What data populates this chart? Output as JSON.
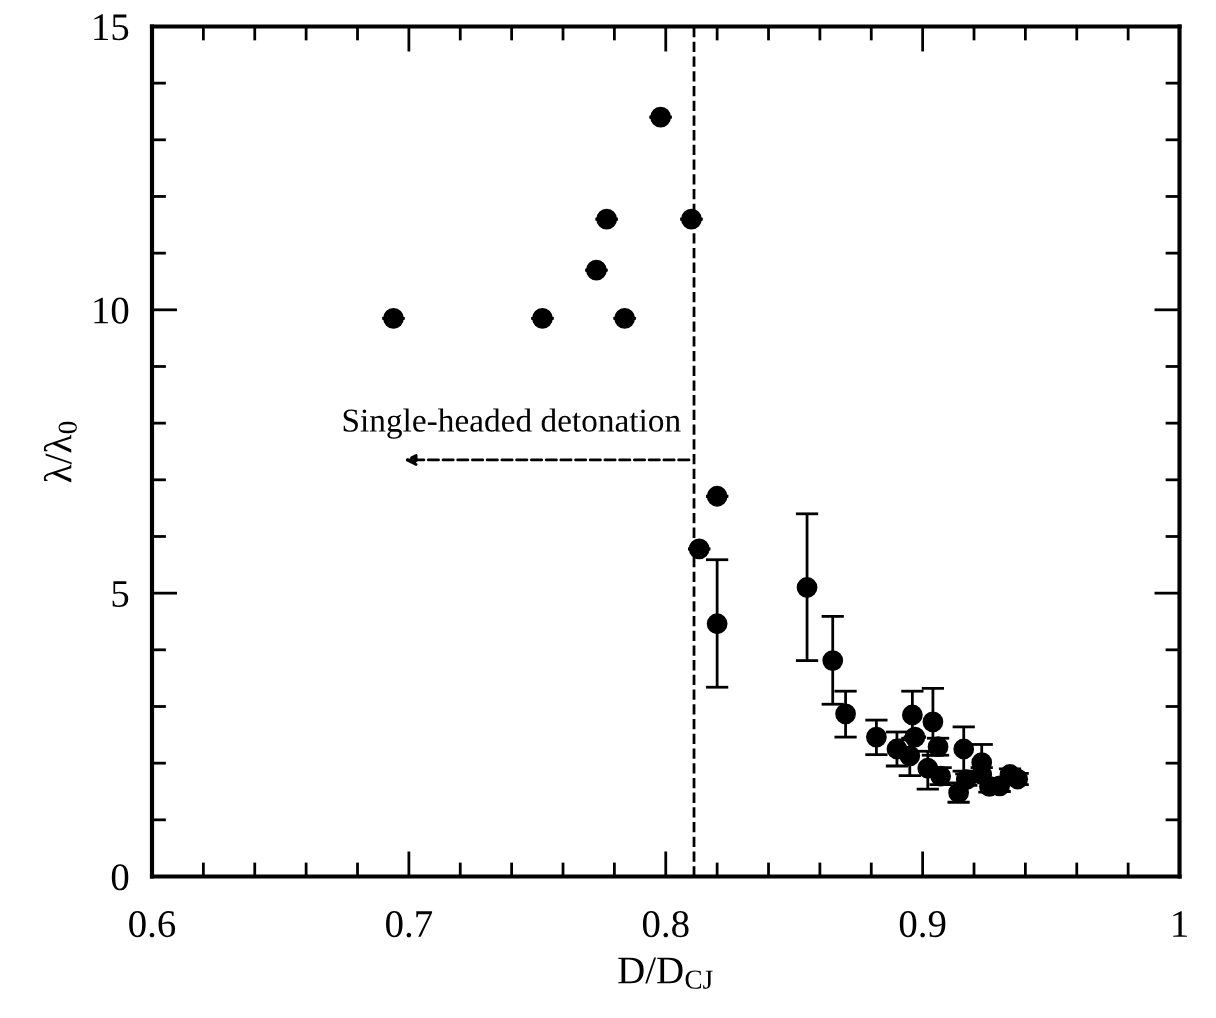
{
  "chart_data": {
    "type": "scatter",
    "xlabel": "D/D$_{CJ}$",
    "ylabel": "λ/λ$_{0}$",
    "x": [
      0.798,
      0.777,
      0.81,
      0.773,
      0.694,
      0.752,
      0.784,
      0.82,
      0.813,
      0.82,
      0.855,
      0.865,
      0.87,
      0.882,
      0.89,
      0.895,
      0.896,
      0.897,
      0.902,
      0.904,
      0.906,
      0.907,
      0.916,
      0.914,
      0.917,
      0.923,
      0.923,
      0.926,
      0.93,
      0.934,
      0.937
    ],
    "values": [
      13.4,
      11.6,
      11.6,
      10.7,
      9.85,
      9.85,
      9.85,
      6.71,
      5.78,
      4.46,
      5.1,
      3.81,
      2.87,
      2.46,
      2.25,
      2.13,
      2.85,
      2.46,
      1.91,
      2.73,
      2.29,
      1.77,
      2.25,
      1.48,
      1.71,
      2.01,
      1.8,
      1.59,
      1.6,
      1.8,
      1.72
    ],
    "errors": [
      null,
      null,
      null,
      null,
      null,
      null,
      null,
      null,
      null,
      [
        3.34,
        5.59
      ],
      [
        3.81,
        6.4
      ],
      [
        3.04,
        4.59
      ],
      [
        2.46,
        3.27
      ],
      [
        2.15,
        2.76
      ],
      [
        1.95,
        2.55
      ],
      [
        1.78,
        2.41
      ],
      [
        2.44,
        3.27
      ],
      null,
      [
        1.54,
        2.21
      ],
      [
        2.14,
        3.32
      ],
      0.15,
      0.15,
      [
        1.86,
        2.64
      ],
      [
        1.31,
        1.65
      ],
      0.1,
      [
        1.69,
        2.33
      ],
      0.12,
      0.1,
      0.1,
      0.1,
      0.1
    ],
    "xerrors": [
      0.004,
      0.004,
      0.004,
      0.004,
      0.004,
      0.004,
      0.004,
      0.004,
      0.004,
      null,
      null,
      null,
      null,
      null,
      null,
      null,
      null,
      null,
      null,
      null,
      null,
      null,
      null,
      null,
      null,
      null,
      null,
      null,
      null,
      null,
      null
    ],
    "color": "#000000",
    "marker": "circle",
    "xlim": [
      0.6,
      1.0
    ],
    "ylim": [
      0,
      15
    ],
    "xticks": [
      0.6,
      {
        "value": 0.62,
        "label": null
      },
      {
        "value": 0.64,
        "label": null
      },
      {
        "value": 0.66,
        "label": null
      },
      {
        "value": 0.68,
        "label": null
      },
      0.7,
      {
        "value": 0.72,
        "label": null
      },
      {
        "value": 0.74,
        "label": null
      },
      {
        "value": 0.76,
        "label": null
      },
      {
        "value": 0.78,
        "label": null
      },
      0.8,
      {
        "value": 0.82,
        "label": null
      },
      {
        "value": 0.84,
        "label": null
      },
      {
        "value": 0.86,
        "label": null
      },
      {
        "value": 0.88,
        "label": null
      },
      0.9,
      {
        "value": 0.92,
        "label": null
      },
      {
        "value": 0.94,
        "label": null
      },
      {
        "value": 0.96,
        "label": null
      },
      {
        "value": 0.98,
        "label": null
      },
      {
        "value": 1.0,
        "label": "1"
      }
    ],
    "yticks": [
      0,
      {
        "value": 1,
        "label": null
      },
      {
        "value": 2,
        "label": null
      },
      {
        "value": 3,
        "label": null
      },
      {
        "value": 4,
        "label": null
      },
      5,
      {
        "value": 6,
        "label": null
      },
      {
        "value": 7,
        "label": null
      },
      {
        "value": 8,
        "label": null
      },
      {
        "value": 9,
        "label": null
      },
      10,
      {
        "value": 11,
        "label": null
      },
      {
        "value": 12,
        "label": null
      },
      {
        "value": 13,
        "label": null
      },
      {
        "value": 14,
        "label": null
      },
      15
    ],
    "ref_lines": [
      {
        "axis": "x",
        "value": 0.811,
        "color": "#000000",
        "line_style": "dashed"
      }
    ],
    "annotations": [
      "Single-headed detonation"
    ],
    "grid": false,
    "legend": false
  }
}
